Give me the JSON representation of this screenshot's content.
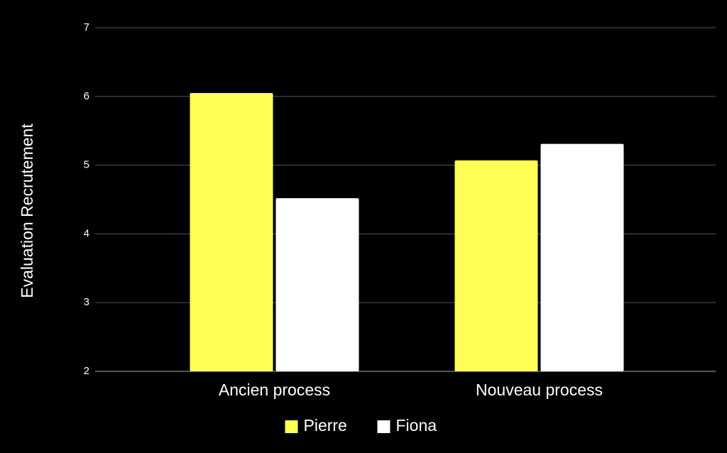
{
  "chart_data": {
    "type": "bar",
    "y_label": "Evaluation Recrutement",
    "categories": [
      "Ancien process",
      "Nouveau process"
    ],
    "series": [
      {
        "name": "Pierre",
        "color": "#ffff55",
        "values": [
          6.05,
          5.07
        ]
      },
      {
        "name": "Fiona",
        "color": "#ffffff",
        "values": [
          4.52,
          5.31
        ]
      }
    ],
    "ylim": [
      2,
      7
    ],
    "yticks": [
      2,
      3,
      4,
      5,
      6,
      7
    ],
    "grid": true,
    "legend": "bottom"
  }
}
